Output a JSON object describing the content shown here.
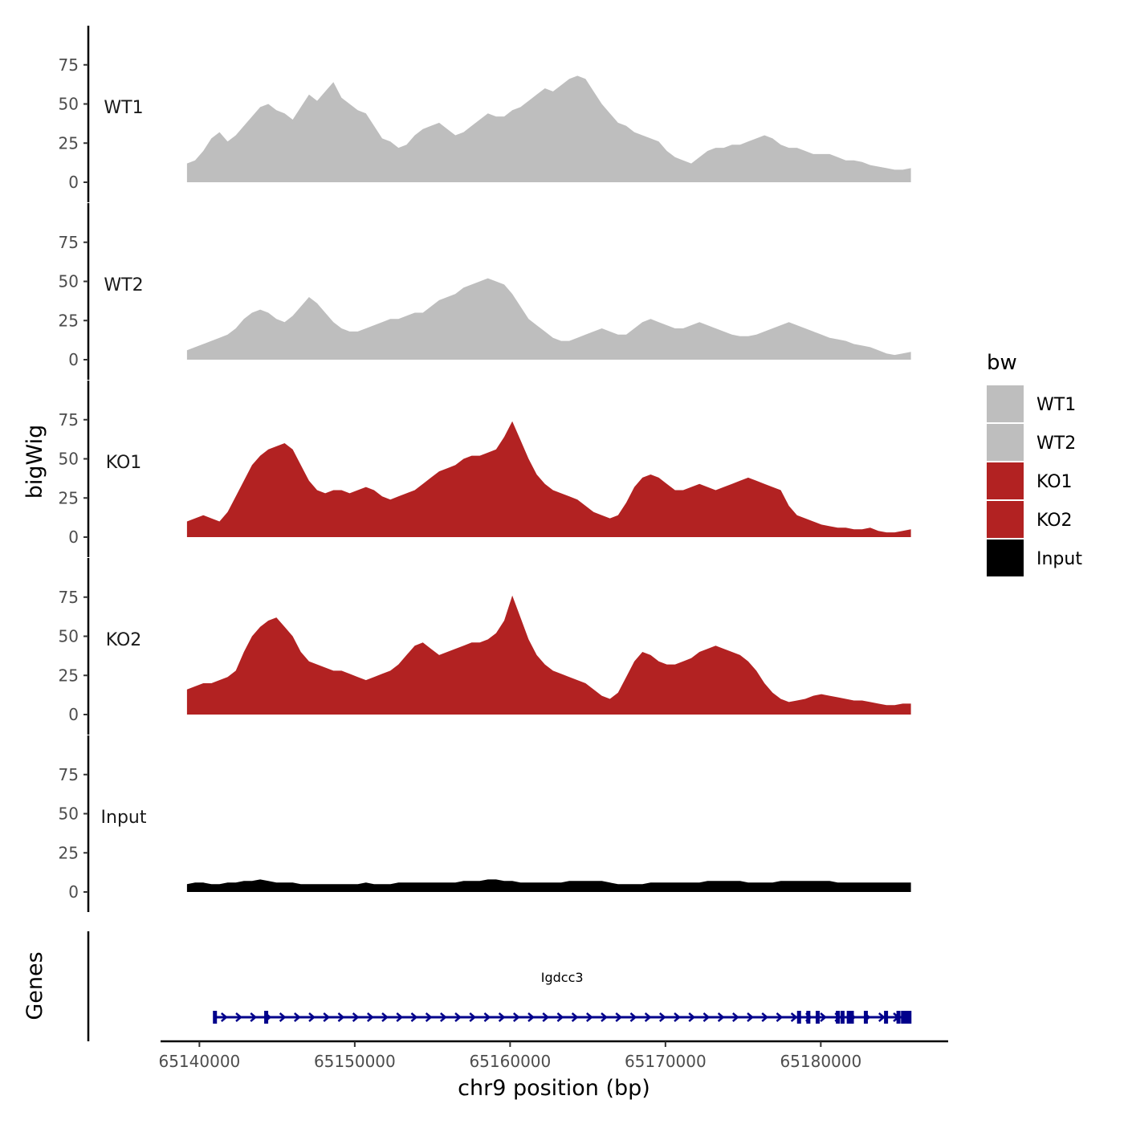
{
  "chart_data": {
    "type": "area",
    "title": "",
    "ylabel": "bigWig",
    "xlabel": "chr9 position (bp)",
    "genes_label": "Genes",
    "xlim": [
      65137500,
      65188200
    ],
    "data_range": [
      65139200,
      65185800
    ],
    "ylim": [
      0,
      100
    ],
    "y_ticks": [
      "0",
      "25",
      "50",
      "75"
    ],
    "x_ticks": [
      {
        "value": 65140000,
        "label": "65140000"
      },
      {
        "value": 65150000,
        "label": "65150000"
      },
      {
        "value": 65160000,
        "label": "65160000"
      },
      {
        "value": 65170000,
        "label": "65170000"
      },
      {
        "value": 65180000,
        "label": "65180000"
      }
    ],
    "legend": {
      "title": "bw",
      "entries": [
        {
          "label": "WT1",
          "color": "#bebebe"
        },
        {
          "label": "WT2",
          "color": "#bebebe"
        },
        {
          "label": "KO1",
          "color": "#b22222"
        },
        {
          "label": "KO2",
          "color": "#b22222"
        },
        {
          "label": "Input",
          "color": "#000000"
        }
      ]
    },
    "series": [
      {
        "name": "WT1",
        "label": "WT1",
        "color": "#bebebe",
        "values": [
          12,
          14,
          20,
          28,
          32,
          26,
          30,
          36,
          42,
          48,
          50,
          46,
          44,
          40,
          48,
          56,
          52,
          58,
          64,
          54,
          50,
          46,
          44,
          36,
          28,
          26,
          22,
          24,
          30,
          34,
          36,
          38,
          34,
          30,
          32,
          36,
          40,
          44,
          42,
          42,
          46,
          48,
          52,
          56,
          60,
          58,
          62,
          66,
          68,
          66,
          58,
          50,
          44,
          38,
          36,
          32,
          30,
          28,
          26,
          20,
          16,
          14,
          12,
          16,
          20,
          22,
          22,
          24,
          24,
          26,
          28,
          30,
          28,
          24,
          22,
          22,
          20,
          18,
          18,
          18,
          16,
          14,
          14,
          13,
          11,
          10,
          9,
          8,
          8,
          9
        ]
      },
      {
        "name": "WT2",
        "label": "WT2",
        "color": "#bebebe",
        "values": [
          6,
          8,
          10,
          12,
          14,
          16,
          20,
          26,
          30,
          32,
          30,
          26,
          24,
          28,
          34,
          40,
          36,
          30,
          24,
          20,
          18,
          18,
          20,
          22,
          24,
          26,
          26,
          28,
          30,
          30,
          34,
          38,
          40,
          42,
          46,
          48,
          50,
          52,
          50,
          48,
          42,
          34,
          26,
          22,
          18,
          14,
          12,
          12,
          14,
          16,
          18,
          20,
          18,
          16,
          16,
          20,
          24,
          26,
          24,
          22,
          20,
          20,
          22,
          24,
          22,
          20,
          18,
          16,
          15,
          15,
          16,
          18,
          20,
          22,
          24,
          22,
          20,
          18,
          16,
          14,
          13,
          12,
          10,
          9,
          8,
          6,
          4,
          3,
          4,
          5
        ]
      },
      {
        "name": "KO1",
        "label": "KO1",
        "color": "#b22222",
        "values": [
          10,
          12,
          14,
          12,
          10,
          16,
          26,
          36,
          46,
          52,
          56,
          58,
          60,
          56,
          46,
          36,
          30,
          28,
          30,
          30,
          28,
          30,
          32,
          30,
          26,
          24,
          26,
          28,
          30,
          34,
          38,
          42,
          44,
          46,
          50,
          52,
          52,
          54,
          56,
          64,
          74,
          62,
          50,
          40,
          34,
          30,
          28,
          26,
          24,
          20,
          16,
          14,
          12,
          14,
          22,
          32,
          38,
          40,
          38,
          34,
          30,
          30,
          32,
          34,
          32,
          30,
          32,
          34,
          36,
          38,
          36,
          34,
          32,
          30,
          20,
          14,
          12,
          10,
          8,
          7,
          6,
          6,
          5,
          5,
          6,
          4,
          3,
          3,
          4,
          5
        ]
      },
      {
        "name": "KO2",
        "label": "KO2",
        "color": "#b22222",
        "values": [
          16,
          18,
          20,
          20,
          22,
          24,
          28,
          40,
          50,
          56,
          60,
          62,
          56,
          50,
          40,
          34,
          32,
          30,
          28,
          28,
          26,
          24,
          22,
          24,
          26,
          28,
          32,
          38,
          44,
          46,
          42,
          38,
          40,
          42,
          44,
          46,
          46,
          48,
          52,
          60,
          76,
          62,
          48,
          38,
          32,
          28,
          26,
          24,
          22,
          20,
          16,
          12,
          10,
          14,
          24,
          34,
          40,
          38,
          34,
          32,
          32,
          34,
          36,
          40,
          42,
          44,
          42,
          40,
          38,
          34,
          28,
          20,
          14,
          10,
          8,
          9,
          10,
          12,
          13,
          12,
          11,
          10,
          9,
          9,
          8,
          7,
          6,
          6,
          7,
          7
        ]
      },
      {
        "name": "Input",
        "label": "Input",
        "color": "#000000",
        "values": [
          5,
          6,
          6,
          5,
          5,
          6,
          6,
          7,
          7,
          8,
          7,
          6,
          6,
          6,
          5,
          5,
          5,
          5,
          5,
          5,
          5,
          5,
          6,
          5,
          5,
          5,
          6,
          6,
          6,
          6,
          6,
          6,
          6,
          6,
          7,
          7,
          7,
          8,
          8,
          7,
          7,
          6,
          6,
          6,
          6,
          6,
          6,
          7,
          7,
          7,
          7,
          7,
          6,
          5,
          5,
          5,
          5,
          6,
          6,
          6,
          6,
          6,
          6,
          6,
          7,
          7,
          7,
          7,
          7,
          6,
          6,
          6,
          6,
          7,
          7,
          7,
          7,
          7,
          7,
          7,
          6,
          6,
          6,
          6,
          6,
          6,
          6,
          6,
          6,
          6
        ]
      }
    ],
    "gene": {
      "name": "Igdcc3",
      "start": 65140900,
      "end": 65185800,
      "strand": "+",
      "color": "#00008b",
      "exons": [
        65141000,
        65144300,
        65178600,
        65179200,
        65179800,
        65181100,
        65181400,
        65181800,
        65182000,
        65182900,
        65184200,
        65185000,
        65185500
      ]
    }
  }
}
